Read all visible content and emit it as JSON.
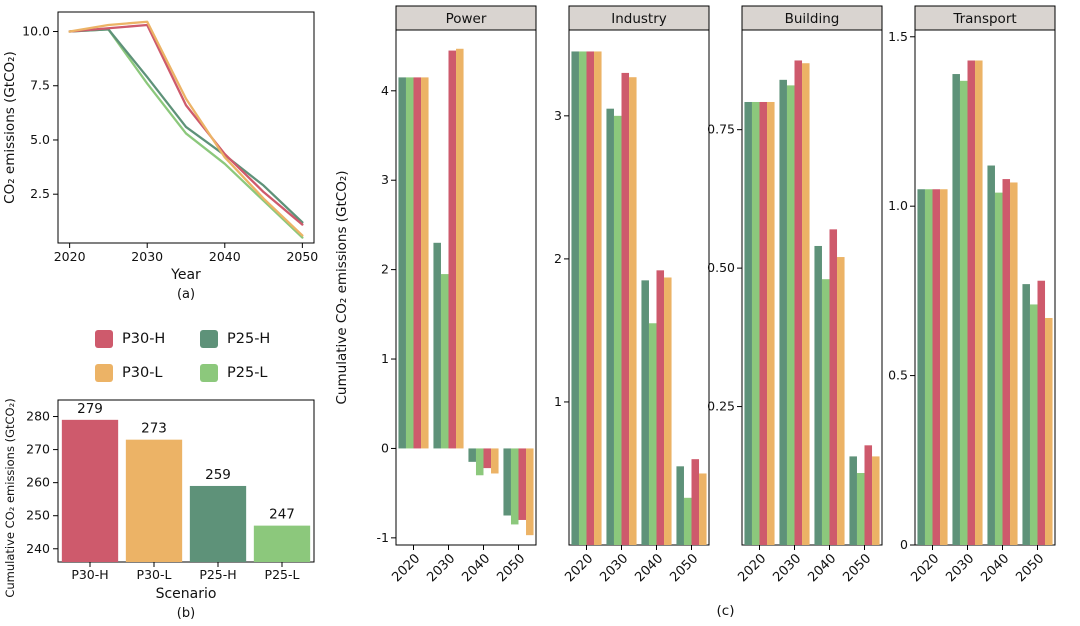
{
  "palette": {
    "P30-H": "#ce5a6c",
    "P30-L": "#ecb366",
    "P25-H": "#5e9279",
    "P25-L": "#8cc87c"
  },
  "styles": {
    "facet_header_bg": "#d9d4d0",
    "axis_color": "#000000",
    "text_color": "#111111",
    "background": "#ffffff"
  },
  "legend": {
    "items": [
      {
        "label": "P30-H",
        "color": "#ce5a6c"
      },
      {
        "label": "P25-H",
        "color": "#5e9279"
      },
      {
        "label": "P30-L",
        "color": "#ecb366"
      },
      {
        "label": "P25-L",
        "color": "#8cc87c"
      }
    ]
  },
  "chart_data": [
    {
      "id": "panel_a",
      "type": "line",
      "caption": "(a)",
      "xlabel": "Year",
      "ylabel": "CO₂ emissions (GtCO₂)",
      "xlim": [
        2018.5,
        2051.5
      ],
      "ylim": [
        0.25,
        10.9
      ],
      "x": [
        2020,
        2025,
        2030,
        2035,
        2040,
        2045,
        2050
      ],
      "xticks": [
        {
          "value": 2020,
          "label": "2020"
        },
        {
          "value": 2030,
          "label": "2030"
        },
        {
          "value": 2040,
          "label": "2040"
        },
        {
          "value": 2050,
          "label": "2050"
        }
      ],
      "yticks": [
        {
          "value": 2.5,
          "label": "2.5"
        },
        {
          "value": 5.0,
          "label": "5.0"
        },
        {
          "value": 7.5,
          "label": "7.5"
        },
        {
          "value": 10.0,
          "label": "10.0"
        }
      ],
      "draw_order": [
        "P25-L",
        "P25-H",
        "P30-H",
        "P30-L"
      ],
      "series": [
        {
          "name": "P30-H",
          "values": [
            10.0,
            10.15,
            10.3,
            6.6,
            4.35,
            2.6,
            1.1
          ]
        },
        {
          "name": "P30-L",
          "values": [
            10.0,
            10.3,
            10.45,
            6.9,
            4.2,
            2.3,
            0.6
          ]
        },
        {
          "name": "P25-H",
          "values": [
            10.0,
            10.1,
            7.9,
            5.6,
            4.3,
            2.9,
            1.2
          ]
        },
        {
          "name": "P25-L",
          "values": [
            10.0,
            10.1,
            7.6,
            5.3,
            3.9,
            2.2,
            0.5
          ]
        }
      ]
    },
    {
      "id": "panel_b",
      "type": "bar",
      "caption": "(b)",
      "xlabel": "Scenario",
      "ylabel": "Cumulative CO₂ emissions (GtCO₂)",
      "categories": [
        "P30-H",
        "P30-L",
        "P25-H",
        "P25-L"
      ],
      "values": [
        279,
        273,
        259,
        247
      ],
      "bar_labels": [
        "279",
        "273",
        "259",
        "247"
      ],
      "ylim": [
        236,
        285
      ],
      "yticks": [
        {
          "value": 240,
          "label": "240"
        },
        {
          "value": 250,
          "label": "250"
        },
        {
          "value": 260,
          "label": "260"
        },
        {
          "value": 270,
          "label": "270"
        },
        {
          "value": 280,
          "label": "280"
        }
      ]
    },
    {
      "id": "panel_c",
      "type": "grouped_bar_facets",
      "caption": "(c)",
      "ylabel": "Cumulative CO₂ emissions (GtCO₂)",
      "categories": [
        "2020",
        "2030",
        "2040",
        "2050"
      ],
      "series_order": [
        "P25-H",
        "P25-L",
        "P30-H",
        "P30-L"
      ],
      "facets": [
        {
          "title": "Power",
          "ylim": [
            -1.08,
            4.68
          ],
          "yticks": [
            {
              "value": -1,
              "label": "-1"
            },
            {
              "value": 0,
              "label": "0"
            },
            {
              "value": 1,
              "label": "1"
            },
            {
              "value": 2,
              "label": "2"
            },
            {
              "value": 3,
              "label": "3"
            },
            {
              "value": 4,
              "label": "4"
            }
          ],
          "series": [
            {
              "name": "P25-H",
              "values": [
                4.15,
                2.3,
                -0.15,
                -0.75
              ]
            },
            {
              "name": "P25-L",
              "values": [
                4.15,
                1.95,
                -0.3,
                -0.85
              ]
            },
            {
              "name": "P30-H",
              "values": [
                4.15,
                4.45,
                -0.22,
                -0.8
              ]
            },
            {
              "name": "P30-L",
              "values": [
                4.15,
                4.47,
                -0.28,
                -0.97
              ]
            }
          ]
        },
        {
          "title": "Industry",
          "ylim": [
            0,
            3.6
          ],
          "yticks": [
            {
              "value": 1,
              "label": "1"
            },
            {
              "value": 2,
              "label": "2"
            },
            {
              "value": 3,
              "label": "3"
            }
          ],
          "series": [
            {
              "name": "P25-H",
              "values": [
                3.45,
                3.05,
                1.85,
                0.55
              ]
            },
            {
              "name": "P25-L",
              "values": [
                3.45,
                3.0,
                1.55,
                0.33
              ]
            },
            {
              "name": "P30-H",
              "values": [
                3.45,
                3.3,
                1.92,
                0.6
              ]
            },
            {
              "name": "P30-L",
              "values": [
                3.45,
                3.27,
                1.87,
                0.5
              ]
            }
          ]
        },
        {
          "title": "Building",
          "ylim": [
            0,
            0.93
          ],
          "yticks": [
            {
              "value": 0.25,
              "label": "0.25"
            },
            {
              "value": 0.5,
              "label": "0.50"
            },
            {
              "value": 0.75,
              "label": "0.75"
            }
          ],
          "series": [
            {
              "name": "P25-H",
              "values": [
                0.8,
                0.84,
                0.54,
                0.16
              ]
            },
            {
              "name": "P25-L",
              "values": [
                0.8,
                0.83,
                0.48,
                0.13
              ]
            },
            {
              "name": "P30-H",
              "values": [
                0.8,
                0.875,
                0.57,
                0.18
              ]
            },
            {
              "name": "P30-L",
              "values": [
                0.8,
                0.87,
                0.52,
                0.16
              ]
            }
          ]
        },
        {
          "title": "Transport",
          "ylim": [
            0,
            1.52
          ],
          "yticks": [
            {
              "value": 0,
              "label": "0"
            },
            {
              "value": 0.5,
              "label": "0.5"
            },
            {
              "value": 1.0,
              "label": "1.0"
            },
            {
              "value": 1.5,
              "label": "1.5"
            }
          ],
          "series": [
            {
              "name": "P25-H",
              "values": [
                1.05,
                1.39,
                1.12,
                0.77
              ]
            },
            {
              "name": "P25-L",
              "values": [
                1.05,
                1.37,
                1.04,
                0.71
              ]
            },
            {
              "name": "P30-H",
              "values": [
                1.05,
                1.43,
                1.08,
                0.78
              ]
            },
            {
              "name": "P30-L",
              "values": [
                1.05,
                1.43,
                1.07,
                0.67
              ]
            }
          ]
        }
      ]
    }
  ]
}
